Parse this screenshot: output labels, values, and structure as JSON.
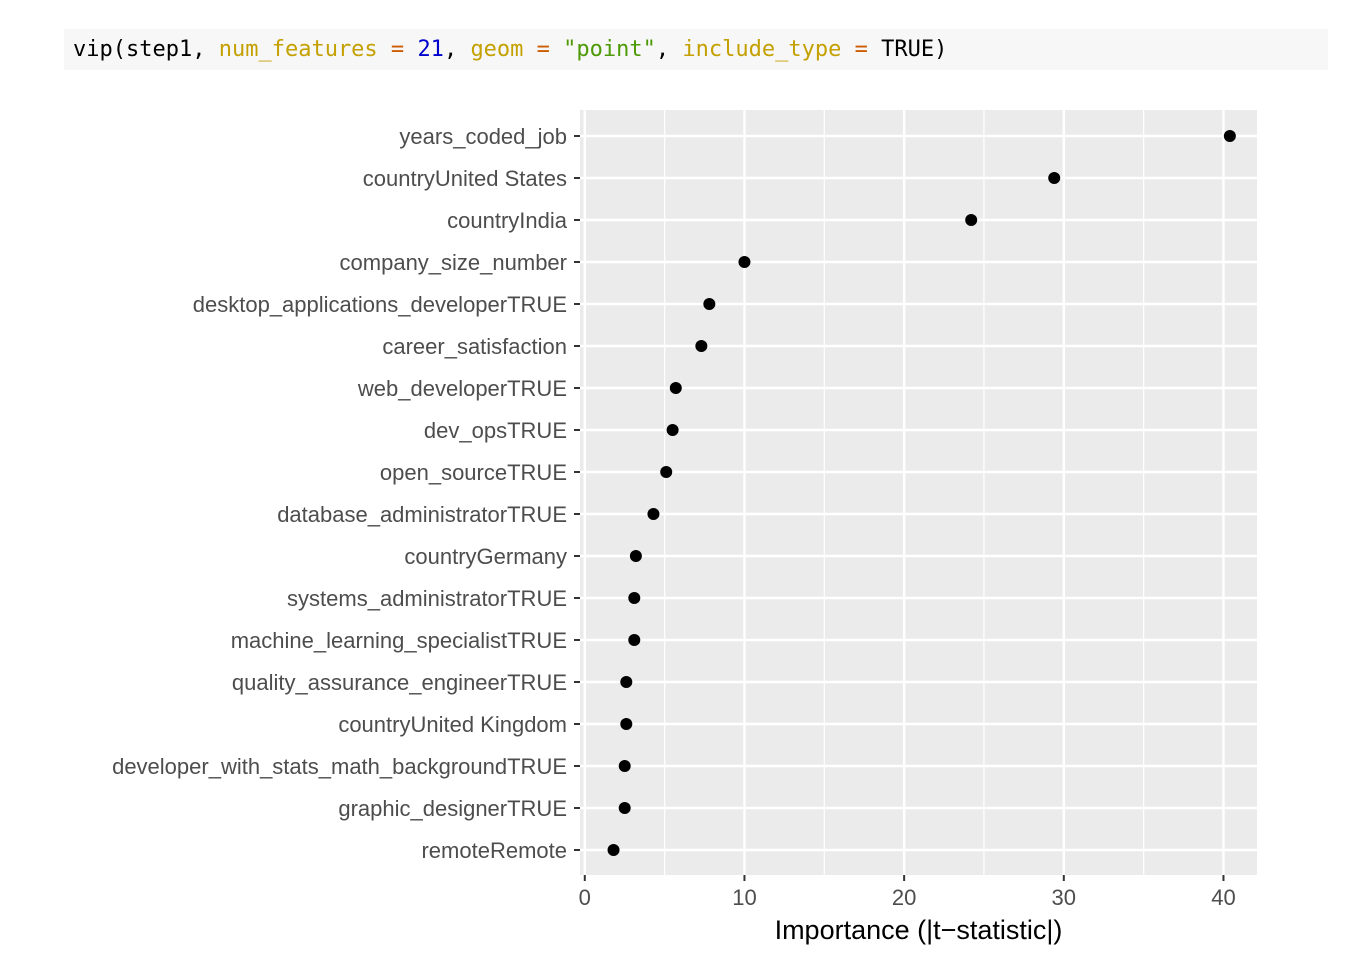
{
  "code": {
    "fn": "vip",
    "open": "(",
    "arg0": "step1",
    "comma": ", ",
    "p1_name": "num_features",
    "eq": " = ",
    "p1_value": "21",
    "p2_name": "geom",
    "p2_value": "\"point\"",
    "p3_name": "include_type",
    "p3_value": "TRUE",
    "close": ")"
  },
  "colors": {
    "panel_background": "#ebebeb",
    "grid": "#ffffff",
    "point": "#000000",
    "code_background": "#f7f7f7"
  },
  "chart_data": {
    "type": "scatter",
    "title": "",
    "xlabel": "Importance (|t−statistic|)",
    "ylabel": "",
    "xlim": [
      -0.3,
      42.1
    ],
    "xticks": [
      0,
      10,
      20,
      30,
      40
    ],
    "grid": true,
    "categories": [
      "years_coded_job",
      "countryUnited States",
      "countryIndia",
      "company_size_number",
      "desktop_applications_developerTRUE",
      "career_satisfaction",
      "web_developerTRUE",
      "dev_opsTRUE",
      "open_sourceTRUE",
      "database_administratorTRUE",
      "countryGermany",
      "systems_administratorTRUE",
      "machine_learning_specialistTRUE",
      "quality_assurance_engineerTRUE",
      "countryUnited Kingdom",
      "developer_with_stats_math_backgroundTRUE",
      "graphic_designerTRUE",
      "remoteRemote"
    ],
    "values": [
      40.4,
      29.4,
      24.2,
      10.0,
      7.8,
      7.3,
      5.7,
      5.5,
      5.1,
      4.3,
      3.2,
      3.1,
      3.1,
      2.6,
      2.6,
      2.5,
      2.5,
      1.8
    ]
  }
}
